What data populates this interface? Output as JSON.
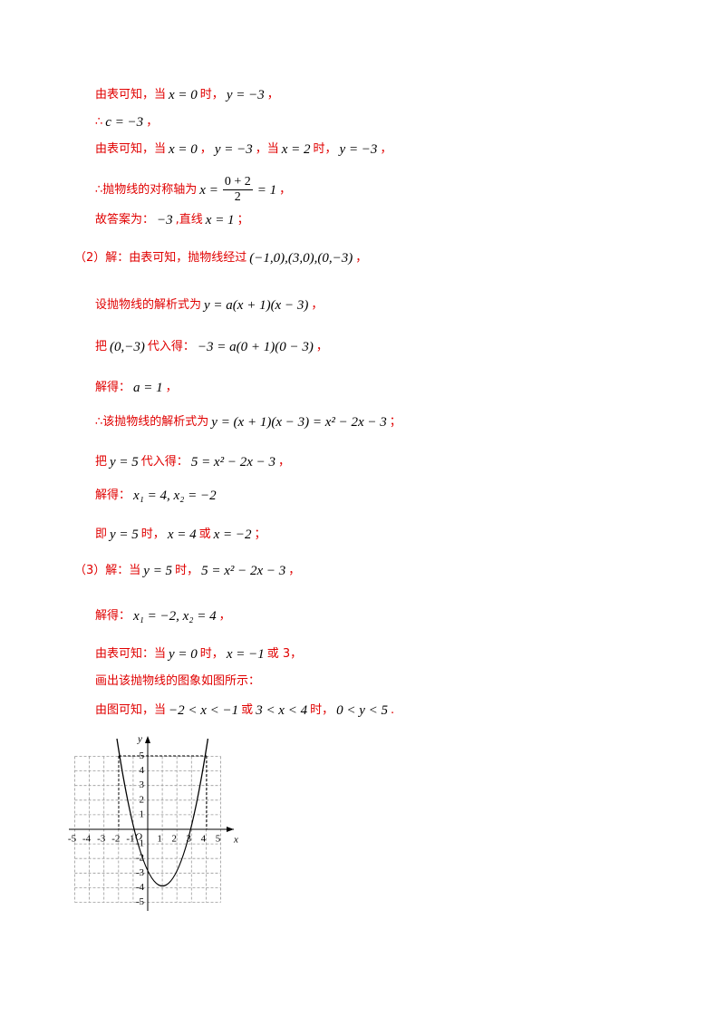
{
  "lines": [
    {
      "segments": [
        {
          "text": "由表可知，当",
          "color": "#e00000"
        },
        {
          "text": "x = 0",
          "color": "#000000"
        },
        {
          "text": "时，",
          "color": "#e00000"
        },
        {
          "text": "y = −3",
          "color": "#000000"
        },
        {
          "text": "，",
          "color": "#e00000"
        }
      ]
    },
    {
      "segments": [
        {
          "text": "∴",
          "color": "#e00000"
        },
        {
          "text": "c = −3",
          "color": "#000000"
        },
        {
          "text": "，",
          "color": "#e00000"
        }
      ]
    },
    {
      "segments": [
        {
          "text": "由表可知，当",
          "color": "#e00000"
        },
        {
          "text": "x = 0",
          "color": "#000000"
        },
        {
          "text": "，",
          "color": "#e00000"
        },
        {
          "text": "y = −3",
          "color": "#000000"
        },
        {
          "text": "，当",
          "color": "#e00000"
        },
        {
          "text": "x = 2",
          "color": "#000000"
        },
        {
          "text": "时，",
          "color": "#e00000"
        },
        {
          "text": "y = −3",
          "color": "#000000"
        },
        {
          "text": "，",
          "color": "#e00000"
        }
      ]
    },
    {
      "segments": [
        {
          "text": "∴抛物线的对称轴为",
          "color": "#e00000"
        },
        {
          "text": "x =",
          "color": "#000000"
        },
        {
          "num": "0 + 2",
          "den": "2"
        },
        {
          "text": "= 1",
          "color": "#000000"
        },
        {
          "text": "，",
          "color": "#e00000"
        }
      ]
    },
    {
      "segments": [
        {
          "text": "故答案为：",
          "color": "#e00000"
        },
        {
          "text": "−3",
          "color": "#000000"
        },
        {
          "text": ",直线",
          "color": "#e00000"
        },
        {
          "text": "x = 1",
          "color": "#000000"
        },
        {
          "text": "；",
          "color": "#e00000"
        }
      ]
    },
    {
      "segments": [
        {
          "text": "（2）解：由表可知，抛物线经过",
          "color": "#e00000"
        },
        {
          "text": "(−1,0),(3,0),(0,−3)",
          "color": "#000000"
        },
        {
          "text": "，",
          "color": "#e00000"
        }
      ]
    },
    {
      "segments": [
        {
          "text": "设抛物线的解析式为",
          "color": "#e00000"
        },
        {
          "text": "y = a(x + 1)(x − 3)",
          "color": "#000000"
        },
        {
          "text": "，",
          "color": "#e00000"
        }
      ]
    },
    {
      "segments": [
        {
          "text": "把",
          "color": "#e00000"
        },
        {
          "text": "(0,−3)",
          "color": "#000000"
        },
        {
          "text": "代入得：",
          "color": "#e00000"
        },
        {
          "text": "−3 = a(0 + 1)(0 − 3)",
          "color": "#000000"
        },
        {
          "text": "，",
          "color": "#e00000"
        }
      ]
    },
    {
      "segments": [
        {
          "text": "解得：",
          "color": "#e00000"
        },
        {
          "text": "a = 1",
          "color": "#000000"
        },
        {
          "text": "，",
          "color": "#e00000"
        }
      ]
    },
    {
      "segments": [
        {
          "text": "∴该抛物线的解析式为",
          "color": "#e00000"
        },
        {
          "text": "y = (x + 1)(x − 3) = x² − 2x − 3",
          "color": "#000000"
        },
        {
          "text": "；",
          "color": "#e00000"
        }
      ]
    },
    {
      "segments": [
        {
          "text": "把",
          "color": "#e00000"
        },
        {
          "text": "y = 5",
          "color": "#000000"
        },
        {
          "text": "代入得：",
          "color": "#e00000"
        },
        {
          "text": "5 = x² − 2x − 3",
          "color": "#000000"
        },
        {
          "text": "，",
          "color": "#e00000"
        }
      ]
    },
    {
      "segments": [
        {
          "text": "解得：",
          "color": "#e00000"
        },
        {
          "text": "x₁ = 4, x₂ = −2",
          "color": "#000000"
        }
      ]
    },
    {
      "segments": [
        {
          "text": "即",
          "color": "#e00000"
        },
        {
          "text": "y = 5",
          "color": "#000000"
        },
        {
          "text": "时，",
          "color": "#e00000"
        },
        {
          "text": "x = 4",
          "color": "#000000"
        },
        {
          "text": "或",
          "color": "#e00000"
        },
        {
          "text": "x = −2",
          "color": "#000000"
        },
        {
          "text": "；",
          "color": "#e00000"
        }
      ]
    },
    {
      "segments": [
        {
          "text": "（3）解：当",
          "color": "#e00000"
        },
        {
          "text": "y = 5",
          "color": "#000000"
        },
        {
          "text": "时，",
          "color": "#e00000"
        },
        {
          "text": "5 = x² − 2x − 3",
          "color": "#000000"
        },
        {
          "text": "，",
          "color": "#e00000"
        }
      ]
    },
    {
      "segments": [
        {
          "text": "解得：",
          "color": "#e00000"
        },
        {
          "text": "x₁ = −2, x₂ = 4",
          "color": "#000000"
        },
        {
          "text": "，",
          "color": "#e00000"
        }
      ]
    },
    {
      "segments": [
        {
          "text": "由表可知：当",
          "color": "#e00000"
        },
        {
          "text": "y = 0",
          "color": "#000000"
        },
        {
          "text": "时，",
          "color": "#e00000"
        },
        {
          "text": "x = −1",
          "color": "#000000"
        },
        {
          "text": "或 3，",
          "color": "#e00000"
        }
      ]
    },
    {
      "segments": [
        {
          "text": "画出该抛物线的图象如图所示：",
          "color": "#e00000"
        }
      ]
    },
    {
      "segments": [
        {
          "text": "由图可知，当",
          "color": "#e00000"
        },
        {
          "text": "−2 < x < −1",
          "color": "#000000"
        },
        {
          "text": "或",
          "color": "#e00000"
        },
        {
          "text": "3 < x < 4",
          "color": "#000000"
        },
        {
          "text": "时，",
          "color": "#e00000"
        },
        {
          "text": "0 < y < 5",
          "color": "#000000"
        },
        {
          "text": ".",
          "color": "#e00000"
        }
      ]
    }
  ],
  "graph": {
    "x_label": "x",
    "y_label": "y",
    "origin_label": "O",
    "x_ticks": [
      -5,
      -4,
      -3,
      -2,
      -1,
      1,
      2,
      3,
      4,
      5
    ],
    "y_ticks": [
      -5,
      -4,
      -3,
      -2,
      -1,
      1,
      2,
      3,
      4,
      5
    ]
  }
}
